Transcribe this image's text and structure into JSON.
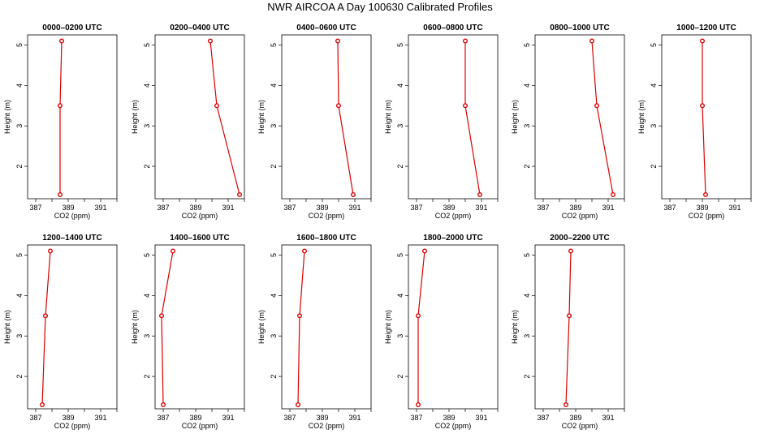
{
  "title": "NWR AIRCOA A  Day 100630  Calibrated Profiles",
  "colors": {
    "series": "#dd0000",
    "axis": "#000000"
  },
  "chart_data": [
    {
      "type": "line",
      "title": "0000–0200 UTC",
      "xlabel": "CO2 (ppm)",
      "ylabel": "Height (m)",
      "xlim": [
        386.5,
        392
      ],
      "ylim": [
        1.2,
        5.25
      ],
      "x_ticks": [
        "387",
        "389",
        "391"
      ],
      "y_ticks": [
        "2",
        "3",
        "4",
        "5"
      ],
      "x": [
        388.5,
        388.5,
        388.6
      ],
      "y": [
        1.3,
        3.5,
        5.1
      ]
    },
    {
      "type": "line",
      "title": "0200–0400 UTC",
      "xlabel": "CO2 (ppm)",
      "ylabel": "Height (m)",
      "xlim": [
        386.5,
        392
      ],
      "ylim": [
        1.2,
        5.25
      ],
      "x_ticks": [
        "387",
        "389",
        "391"
      ],
      "y_ticks": [
        "2",
        "3",
        "4",
        "5"
      ],
      "x": [
        391.7,
        390.3,
        389.9
      ],
      "y": [
        1.3,
        3.5,
        5.1
      ]
    },
    {
      "type": "line",
      "title": "0400–0600 UTC",
      "xlabel": "CO2 (ppm)",
      "ylabel": "Height (m)",
      "xlim": [
        386.5,
        392
      ],
      "ylim": [
        1.2,
        5.25
      ],
      "x_ticks": [
        "387",
        "389",
        "391"
      ],
      "y_ticks": [
        "2",
        "3",
        "4",
        "5"
      ],
      "x": [
        390.9,
        390.0,
        389.95
      ],
      "y": [
        1.3,
        3.5,
        5.1
      ]
    },
    {
      "type": "line",
      "title": "0600–0800 UTC",
      "xlabel": "CO2 (ppm)",
      "ylabel": "Height (m)",
      "xlim": [
        386.5,
        392
      ],
      "ylim": [
        1.2,
        5.25
      ],
      "x_ticks": [
        "387",
        "389",
        "391"
      ],
      "y_ticks": [
        "2",
        "3",
        "4",
        "5"
      ],
      "x": [
        390.9,
        390.0,
        390.0
      ],
      "y": [
        1.3,
        3.5,
        5.1
      ]
    },
    {
      "type": "line",
      "title": "0800–1000 UTC",
      "xlabel": "CO2 (ppm)",
      "ylabel": "Height (m)",
      "xlim": [
        386.5,
        392
      ],
      "ylim": [
        1.2,
        5.25
      ],
      "x_ticks": [
        "387",
        "389",
        "391"
      ],
      "y_ticks": [
        "2",
        "3",
        "4",
        "5"
      ],
      "x": [
        391.3,
        390.3,
        390.0
      ],
      "y": [
        1.3,
        3.5,
        5.1
      ]
    },
    {
      "type": "line",
      "title": "1000–1200 UTC",
      "xlabel": "CO2 (ppm)",
      "ylabel": "Height (m)",
      "xlim": [
        386.5,
        392
      ],
      "ylim": [
        1.2,
        5.25
      ],
      "x_ticks": [
        "387",
        "389",
        "391"
      ],
      "y_ticks": [
        "2",
        "3",
        "4",
        "5"
      ],
      "x": [
        389.2,
        389.0,
        389.0
      ],
      "y": [
        1.3,
        3.5,
        5.1
      ]
    },
    {
      "type": "line",
      "title": "1200–1400 UTC",
      "xlabel": "CO2 (ppm)",
      "ylabel": "Height (m)",
      "xlim": [
        386.5,
        392
      ],
      "ylim": [
        1.2,
        5.25
      ],
      "x_ticks": [
        "387",
        "389",
        "391"
      ],
      "y_ticks": [
        "2",
        "3",
        "4",
        "5"
      ],
      "x": [
        387.4,
        387.6,
        387.9
      ],
      "y": [
        1.3,
        3.5,
        5.1
      ]
    },
    {
      "type": "line",
      "title": "1400–1600 UTC",
      "xlabel": "CO2 (ppm)",
      "ylabel": "Height (m)",
      "xlim": [
        386.5,
        392
      ],
      "ylim": [
        1.2,
        5.25
      ],
      "x_ticks": [
        "387",
        "389",
        "391"
      ],
      "y_ticks": [
        "2",
        "3",
        "4",
        "5"
      ],
      "x": [
        387.0,
        386.9,
        387.6
      ],
      "y": [
        1.3,
        3.5,
        5.1
      ]
    },
    {
      "type": "line",
      "title": "1600–1800 UTC",
      "xlabel": "CO2 (ppm)",
      "ylabel": "Height (m)",
      "xlim": [
        386.5,
        392
      ],
      "ylim": [
        1.2,
        5.25
      ],
      "x_ticks": [
        "387",
        "389",
        "391"
      ],
      "y_ticks": [
        "2",
        "3",
        "4",
        "5"
      ],
      "x": [
        387.5,
        387.6,
        387.9
      ],
      "y": [
        1.3,
        3.5,
        5.1
      ]
    },
    {
      "type": "line",
      "title": "1800–2000 UTC",
      "xlabel": "CO2 (ppm)",
      "ylabel": "Height (m)",
      "xlim": [
        386.5,
        392
      ],
      "ylim": [
        1.2,
        5.25
      ],
      "x_ticks": [
        "387",
        "389",
        "391"
      ],
      "y_ticks": [
        "2",
        "3",
        "4",
        "5"
      ],
      "x": [
        387.1,
        387.1,
        387.5
      ],
      "y": [
        1.3,
        3.5,
        5.1
      ]
    },
    {
      "type": "line",
      "title": "2000–2200 UTC",
      "xlabel": "CO2 (ppm)",
      "ylabel": "Height (m)",
      "xlim": [
        386.5,
        392
      ],
      "ylim": [
        1.2,
        5.25
      ],
      "x_ticks": [
        "387",
        "389",
        "391"
      ],
      "y_ticks": [
        "2",
        "3",
        "4",
        "5"
      ],
      "x": [
        388.4,
        388.6,
        388.7
      ],
      "y": [
        1.3,
        3.5,
        5.1
      ]
    }
  ]
}
